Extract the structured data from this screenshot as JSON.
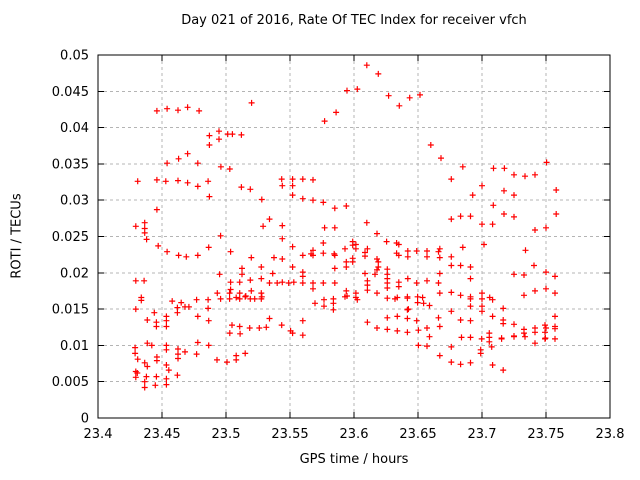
{
  "chart_data": {
    "type": "scatter",
    "title": "Day 021 of 2016, Rate Of TEC Index for receiver vfch",
    "xlabel": "GPS time / hours",
    "ylabel": "ROTI / TECUs",
    "xlim": [
      23.4,
      23.8
    ],
    "ylim": [
      0,
      0.05
    ],
    "x_ticks": [
      "23.4",
      "23.45",
      "23.5",
      "23.55",
      "23.6",
      "23.65",
      "23.7",
      "23.75",
      "23.8"
    ],
    "y_ticks": [
      "0",
      "0.005",
      "0.01",
      "0.015",
      "0.02",
      "0.025",
      "0.03",
      "0.035",
      "0.04",
      "0.045",
      "0.05"
    ],
    "grid": true,
    "legend": "none",
    "marker": {
      "shape": "plus",
      "color": "#ff0000",
      "size": 7
    },
    "grid_color": "#b4b4b4",
    "border_color": "#000000",
    "points": [
      [
        23.446,
        0.0423
      ],
      [
        23.454,
        0.0426
      ],
      [
        23.4625,
        0.0424
      ],
      [
        23.47,
        0.0428
      ],
      [
        23.479,
        0.0423
      ],
      [
        23.52,
        0.0434
      ],
      [
        23.487,
        0.0389
      ],
      [
        23.4945,
        0.0395
      ],
      [
        23.4945,
        0.0384
      ],
      [
        23.5013,
        0.0391
      ],
      [
        23.505,
        0.0391
      ],
      [
        23.512,
        0.039
      ],
      [
        23.487,
        0.0376
      ],
      [
        23.47,
        0.0364
      ],
      [
        23.463,
        0.0357
      ],
      [
        23.454,
        0.0351
      ],
      [
        23.478,
        0.0351
      ],
      [
        23.496,
        0.0346
      ],
      [
        23.503,
        0.0343
      ],
      [
        23.61,
        0.0486
      ],
      [
        23.619,
        0.0474
      ],
      [
        23.5945,
        0.0451
      ],
      [
        23.6026,
        0.0453
      ],
      [
        23.627,
        0.0444
      ],
      [
        23.6354,
        0.043
      ],
      [
        23.6435,
        0.0441
      ],
      [
        23.6516,
        0.0445
      ],
      [
        23.586,
        0.0421
      ],
      [
        23.577,
        0.0409
      ],
      [
        23.66,
        0.0376
      ],
      [
        23.668,
        0.0358
      ],
      [
        23.685,
        0.0346
      ],
      [
        23.709,
        0.0344
      ],
      [
        23.7175,
        0.0344
      ],
      [
        23.725,
        0.0335
      ],
      [
        23.7336,
        0.0333
      ],
      [
        23.7414,
        0.0335
      ],
      [
        23.7505,
        0.0352
      ],
      [
        23.431,
        0.0326
      ],
      [
        23.446,
        0.0328
      ],
      [
        23.453,
        0.0326
      ],
      [
        23.4625,
        0.0327
      ],
      [
        23.47,
        0.0324
      ],
      [
        23.478,
        0.0319
      ],
      [
        23.486,
        0.0326
      ],
      [
        23.512,
        0.0318
      ],
      [
        23.519,
        0.0315
      ],
      [
        23.528,
        0.0301
      ],
      [
        23.487,
        0.0305
      ],
      [
        23.446,
        0.0287
      ],
      [
        23.4295,
        0.0264
      ],
      [
        23.4365,
        0.0269
      ],
      [
        23.4365,
        0.0261
      ],
      [
        23.4365,
        0.0255
      ],
      [
        23.438,
        0.0246
      ],
      [
        23.529,
        0.0264
      ],
      [
        23.4958,
        0.0251
      ],
      [
        23.447,
        0.0237
      ],
      [
        23.454,
        0.0229
      ],
      [
        23.463,
        0.0224
      ],
      [
        23.469,
        0.0222
      ],
      [
        23.478,
        0.0224
      ],
      [
        23.4865,
        0.0235
      ],
      [
        23.5036,
        0.0229
      ],
      [
        23.5198,
        0.0221
      ],
      [
        23.5125,
        0.0206
      ],
      [
        23.5276,
        0.0208
      ],
      [
        23.495,
        0.0198
      ],
      [
        23.5125,
        0.0198
      ],
      [
        23.4295,
        0.0189
      ],
      [
        23.436,
        0.0189
      ],
      [
        23.5036,
        0.0187
      ],
      [
        23.5107,
        0.0187
      ],
      [
        23.519,
        0.019
      ],
      [
        23.5276,
        0.0192
      ],
      [
        23.5036,
        0.0177
      ],
      [
        23.5198,
        0.0175
      ],
      [
        23.4932,
        0.0172
      ],
      [
        23.4958,
        0.0164
      ],
      [
        23.5028,
        0.0172
      ],
      [
        23.5028,
        0.0164
      ],
      [
        23.5107,
        0.0172
      ],
      [
        23.5107,
        0.0164
      ],
      [
        23.519,
        0.0164
      ],
      [
        23.5276,
        0.0172
      ],
      [
        23.5276,
        0.0164
      ],
      [
        23.486,
        0.0163
      ],
      [
        23.5435,
        0.0329
      ],
      [
        23.552,
        0.0329
      ],
      [
        23.56,
        0.0329
      ],
      [
        23.568,
        0.0328
      ],
      [
        23.544,
        0.032
      ],
      [
        23.552,
        0.032
      ],
      [
        23.552,
        0.0307
      ],
      [
        23.56,
        0.0302
      ],
      [
        23.568,
        0.03
      ],
      [
        23.576,
        0.0297
      ],
      [
        23.585,
        0.0289
      ],
      [
        23.594,
        0.0292
      ],
      [
        23.534,
        0.0274
      ],
      [
        23.544,
        0.0265
      ],
      [
        23.577,
        0.0262
      ],
      [
        23.585,
        0.0262
      ],
      [
        23.61,
        0.0269
      ],
      [
        23.618,
        0.0254
      ],
      [
        23.544,
        0.0247
      ],
      [
        23.552,
        0.0236
      ],
      [
        23.576,
        0.0241
      ],
      [
        23.568,
        0.0231
      ],
      [
        23.56,
        0.0224
      ],
      [
        23.5665,
        0.0226
      ],
      [
        23.568,
        0.0224
      ],
      [
        23.576,
        0.0227
      ],
      [
        23.5845,
        0.0226
      ],
      [
        23.585,
        0.0224
      ],
      [
        23.593,
        0.0233
      ],
      [
        23.599,
        0.0243
      ],
      [
        23.599,
        0.0238
      ],
      [
        23.6015,
        0.0239
      ],
      [
        23.6015,
        0.0233
      ],
      [
        23.6105,
        0.0233
      ],
      [
        23.6086,
        0.0228
      ],
      [
        23.6086,
        0.0223
      ],
      [
        23.6255,
        0.0243
      ],
      [
        23.6333,
        0.0241
      ],
      [
        23.6333,
        0.0227
      ],
      [
        23.635,
        0.0239
      ],
      [
        23.635,
        0.0224
      ],
      [
        23.642,
        0.023
      ],
      [
        23.649,
        0.023
      ],
      [
        23.657,
        0.023
      ],
      [
        23.642,
        0.0222
      ],
      [
        23.657,
        0.0222
      ],
      [
        23.666,
        0.0229
      ],
      [
        23.599,
        0.022
      ],
      [
        23.599,
        0.0215
      ],
      [
        23.5375,
        0.0221
      ],
      [
        23.544,
        0.0219
      ],
      [
        23.5365,
        0.0199
      ],
      [
        23.552,
        0.0208
      ],
      [
        23.56,
        0.0201
      ],
      [
        23.594,
        0.0215
      ],
      [
        23.594,
        0.0208
      ],
      [
        23.585,
        0.0206
      ],
      [
        23.618,
        0.0219
      ],
      [
        23.619,
        0.0215
      ],
      [
        23.619,
        0.0208
      ],
      [
        23.618,
        0.0204
      ],
      [
        23.626,
        0.0205
      ],
      [
        23.6086,
        0.0199
      ],
      [
        23.6164,
        0.0198
      ],
      [
        23.534,
        0.0186
      ],
      [
        23.54,
        0.0186
      ],
      [
        23.544,
        0.0187
      ],
      [
        23.549,
        0.0186
      ],
      [
        23.553,
        0.0187
      ],
      [
        23.56,
        0.0186
      ],
      [
        23.568,
        0.0186
      ],
      [
        23.576,
        0.0186
      ],
      [
        23.56,
        0.0195
      ],
      [
        23.568,
        0.0178
      ],
      [
        23.585,
        0.0186
      ],
      [
        23.594,
        0.0175
      ],
      [
        23.6015,
        0.0172
      ],
      [
        23.6015,
        0.0166
      ],
      [
        23.6105,
        0.0189
      ],
      [
        23.6105,
        0.0183
      ],
      [
        23.6105,
        0.0176
      ],
      [
        23.618,
        0.0172
      ],
      [
        23.626,
        0.0198
      ],
      [
        23.626,
        0.0192
      ],
      [
        23.626,
        0.0186
      ],
      [
        23.626,
        0.0179
      ],
      [
        23.635,
        0.0187
      ],
      [
        23.635,
        0.0181
      ],
      [
        23.642,
        0.0192
      ],
      [
        23.649,
        0.0186
      ],
      [
        23.657,
        0.0189
      ],
      [
        23.666,
        0.0186
      ],
      [
        23.632,
        0.0164
      ],
      [
        23.6417,
        0.0167
      ],
      [
        23.676,
        0.0329
      ],
      [
        23.7,
        0.032
      ],
      [
        23.6927,
        0.0307
      ],
      [
        23.7172,
        0.0313
      ],
      [
        23.725,
        0.0307
      ],
      [
        23.758,
        0.0314
      ],
      [
        23.7088,
        0.0293
      ],
      [
        23.676,
        0.0274
      ],
      [
        23.6833,
        0.0278
      ],
      [
        23.691,
        0.0278
      ],
      [
        23.7172,
        0.0281
      ],
      [
        23.725,
        0.0277
      ],
      [
        23.7,
        0.0267
      ],
      [
        23.7083,
        0.0267
      ],
      [
        23.758,
        0.0281
      ],
      [
        23.7414,
        0.0259
      ],
      [
        23.75,
        0.0262
      ],
      [
        23.7016,
        0.0239
      ],
      [
        23.685,
        0.0235
      ],
      [
        23.667,
        0.0233
      ],
      [
        23.676,
        0.0222
      ],
      [
        23.676,
        0.021
      ],
      [
        23.6833,
        0.021
      ],
      [
        23.691,
        0.0208
      ],
      [
        23.734,
        0.0231
      ],
      [
        23.7406,
        0.021
      ],
      [
        23.75,
        0.0201
      ],
      [
        23.725,
        0.0198
      ],
      [
        23.7328,
        0.0197
      ],
      [
        23.691,
        0.0192
      ],
      [
        23.757,
        0.0195
      ],
      [
        23.667,
        0.0221
      ],
      [
        23.667,
        0.0199
      ],
      [
        23.75,
        0.0178
      ],
      [
        23.757,
        0.0172
      ],
      [
        23.667,
        0.0172
      ],
      [
        23.676,
        0.0173
      ],
      [
        23.6833,
        0.0169
      ],
      [
        23.691,
        0.0167
      ],
      [
        23.7,
        0.0172
      ],
      [
        23.706,
        0.0166
      ],
      [
        23.7328,
        0.0169
      ],
      [
        23.7414,
        0.0175
      ],
      [
        23.458,
        0.0161
      ],
      [
        23.465,
        0.0159
      ],
      [
        23.477,
        0.0163
      ],
      [
        23.4338,
        0.0166
      ],
      [
        23.4338,
        0.0162
      ],
      [
        23.508,
        0.0166
      ],
      [
        23.515,
        0.0167
      ],
      [
        23.5155,
        0.0168
      ],
      [
        23.5224,
        0.0164
      ],
      [
        23.528,
        0.0167
      ],
      [
        23.4295,
        0.015
      ],
      [
        23.4385,
        0.0135
      ],
      [
        23.4456,
        0.0132
      ],
      [
        23.4456,
        0.0126
      ],
      [
        23.4534,
        0.014
      ],
      [
        23.4534,
        0.0134
      ],
      [
        23.4534,
        0.0126
      ],
      [
        23.462,
        0.0152
      ],
      [
        23.462,
        0.0145
      ],
      [
        23.468,
        0.0153
      ],
      [
        23.471,
        0.0153
      ],
      [
        23.478,
        0.014
      ],
      [
        23.4865,
        0.0134
      ],
      [
        23.486,
        0.0151
      ],
      [
        23.444,
        0.0145
      ],
      [
        23.5047,
        0.0128
      ],
      [
        23.5107,
        0.0126
      ],
      [
        23.5185,
        0.0124
      ],
      [
        23.526,
        0.0124
      ],
      [
        23.5315,
        0.0125
      ],
      [
        23.503,
        0.0117
      ],
      [
        23.511,
        0.0116
      ],
      [
        23.429,
        0.0097
      ],
      [
        23.429,
        0.0089
      ],
      [
        23.431,
        0.0081
      ],
      [
        23.4365,
        0.0076
      ],
      [
        23.4385,
        0.0071
      ],
      [
        23.4385,
        0.0103
      ],
      [
        23.442,
        0.01
      ],
      [
        23.446,
        0.0084
      ],
      [
        23.446,
        0.0079
      ],
      [
        23.4534,
        0.01
      ],
      [
        23.4534,
        0.0094
      ],
      [
        23.4534,
        0.0073
      ],
      [
        23.4553,
        0.0066
      ],
      [
        23.4625,
        0.0088
      ],
      [
        23.4625,
        0.0082
      ],
      [
        23.4625,
        0.0095
      ],
      [
        23.468,
        0.0091
      ],
      [
        23.478,
        0.0104
      ],
      [
        23.4865,
        0.01
      ],
      [
        23.493,
        0.008
      ],
      [
        23.5008,
        0.0077
      ],
      [
        23.508,
        0.0086
      ],
      [
        23.515,
        0.0089
      ],
      [
        23.508,
        0.008
      ],
      [
        23.477,
        0.0088
      ],
      [
        23.4456,
        0.0057
      ],
      [
        23.4534,
        0.0054
      ],
      [
        23.462,
        0.0059
      ],
      [
        23.4534,
        0.0046
      ],
      [
        23.4307,
        0.0062
      ],
      [
        23.4378,
        0.0057
      ],
      [
        23.4295,
        0.0064
      ],
      [
        23.4295,
        0.0056
      ],
      [
        23.4365,
        0.005
      ],
      [
        23.4365,
        0.0042
      ],
      [
        23.4448,
        0.0045
      ],
      [
        23.5695,
        0.0158
      ],
      [
        23.5766,
        0.0163
      ],
      [
        23.5766,
        0.0154
      ],
      [
        23.5839,
        0.0164
      ],
      [
        23.5839,
        0.0158
      ],
      [
        23.5839,
        0.0149
      ],
      [
        23.593,
        0.0167
      ],
      [
        23.5945,
        0.0168
      ],
      [
        23.6026,
        0.0163
      ],
      [
        23.626,
        0.0165
      ],
      [
        23.6338,
        0.0166
      ],
      [
        23.6417,
        0.0165
      ],
      [
        23.6497,
        0.0167
      ],
      [
        23.6536,
        0.0166
      ],
      [
        23.6497,
        0.0159
      ],
      [
        23.6544,
        0.0158
      ],
      [
        23.659,
        0.0155
      ],
      [
        23.6417,
        0.0149
      ],
      [
        23.6425,
        0.015
      ],
      [
        23.5435,
        0.0128
      ],
      [
        23.5505,
        0.012
      ],
      [
        23.552,
        0.0117
      ],
      [
        23.56,
        0.0134
      ],
      [
        23.56,
        0.0114
      ],
      [
        23.6105,
        0.0132
      ],
      [
        23.618,
        0.0124
      ],
      [
        23.626,
        0.0138
      ],
      [
        23.626,
        0.0122
      ],
      [
        23.6338,
        0.014
      ],
      [
        23.6338,
        0.012
      ],
      [
        23.6417,
        0.0137
      ],
      [
        23.6417,
        0.0118
      ],
      [
        23.649,
        0.0134
      ],
      [
        23.6503,
        0.0121
      ],
      [
        23.657,
        0.0124
      ],
      [
        23.659,
        0.0112
      ],
      [
        23.666,
        0.0138
      ],
      [
        23.667,
        0.0126
      ],
      [
        23.534,
        0.0137
      ],
      [
        23.6503,
        0.01
      ],
      [
        23.657,
        0.0099
      ],
      [
        23.667,
        0.0086
      ],
      [
        23.676,
        0.0147
      ],
      [
        23.691,
        0.0164
      ],
      [
        23.691,
        0.0154
      ],
      [
        23.7,
        0.0164
      ],
      [
        23.7,
        0.0154
      ],
      [
        23.7,
        0.0147
      ],
      [
        23.7083,
        0.0163
      ],
      [
        23.7166,
        0.0151
      ],
      [
        23.6833,
        0.0135
      ],
      [
        23.691,
        0.0134
      ],
      [
        23.7083,
        0.014
      ],
      [
        23.7166,
        0.0135
      ],
      [
        23.7166,
        0.013
      ],
      [
        23.725,
        0.0129
      ],
      [
        23.7328,
        0.0122
      ],
      [
        23.7328,
        0.0117
      ],
      [
        23.7414,
        0.0124
      ],
      [
        23.7414,
        0.0118
      ],
      [
        23.7492,
        0.0128
      ],
      [
        23.75,
        0.0124
      ],
      [
        23.7492,
        0.0118
      ],
      [
        23.757,
        0.014
      ],
      [
        23.757,
        0.0126
      ],
      [
        23.757,
        0.0123
      ],
      [
        23.684,
        0.0111
      ],
      [
        23.691,
        0.0111
      ],
      [
        23.6998,
        0.0109
      ],
      [
        23.7057,
        0.0117
      ],
      [
        23.7057,
        0.0111
      ],
      [
        23.7057,
        0.0105
      ],
      [
        23.7153,
        0.0109
      ],
      [
        23.7153,
        0.011
      ],
      [
        23.725,
        0.0112
      ],
      [
        23.725,
        0.0113
      ],
      [
        23.7336,
        0.0112
      ],
      [
        23.7492,
        0.0109
      ],
      [
        23.7495,
        0.011
      ],
      [
        23.757,
        0.0109
      ],
      [
        23.7414,
        0.0103
      ],
      [
        23.676,
        0.0098
      ],
      [
        23.699,
        0.0094
      ],
      [
        23.699,
        0.0089
      ],
      [
        23.7076,
        0.0098
      ],
      [
        23.676,
        0.0077
      ],
      [
        23.6833,
        0.0074
      ],
      [
        23.691,
        0.0076
      ],
      [
        23.7083,
        0.0073
      ],
      [
        23.7166,
        0.0066
      ]
    ]
  }
}
